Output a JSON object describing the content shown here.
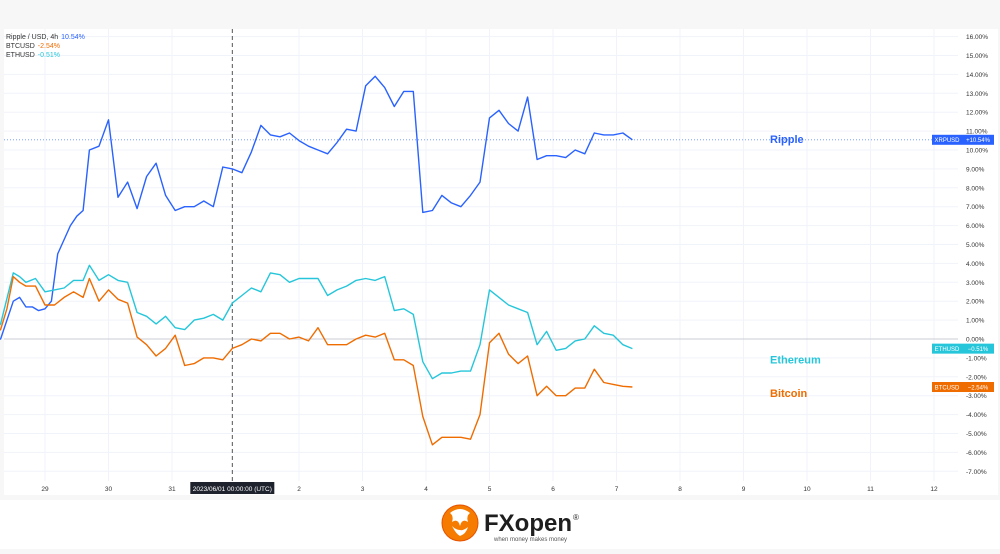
{
  "chart_data": {
    "type": "line",
    "legend": [
      {
        "symbol": "Ripple / USD, 4h",
        "value": "10.54%",
        "color": "#2962ff"
      },
      {
        "symbol": "BTCUSD",
        "value": "-2.54%",
        "color": "#ef6c00"
      },
      {
        "symbol": "ETHUSD",
        "value": "-0.51%",
        "color": "#26c6da"
      }
    ],
    "x_ticks": [
      "29",
      "30",
      "31",
      "2023/06/01   00:00:00 (UTC)",
      "2",
      "3",
      "4",
      "5",
      "6",
      "7",
      "8",
      "9",
      "10",
      "11",
      "12"
    ],
    "y_ticks": [
      "16.00%",
      "15.00%",
      "14.00%",
      "13.00%",
      "12.00%",
      "11.00%",
      "10.00%",
      "9.00%",
      "8.00%",
      "7.00%",
      "6.00%",
      "5.00%",
      "4.00%",
      "3.00%",
      "2.00%",
      "1.00%",
      "0.00%",
      "-1.00%",
      "-2.00%",
      "-3.00%",
      "-4.00%",
      "-5.00%",
      "-6.00%",
      "-7.00%"
    ],
    "ylim": [
      -7.8,
      16.3
    ],
    "series": [
      {
        "name": "Ripple",
        "label": "Ripple",
        "tag": "XRPUSD",
        "tag_value": "+10.54%",
        "color": "#2962ff",
        "points": [
          [
            28.1,
            0
          ],
          [
            28.3,
            0
          ],
          [
            28.5,
            2
          ],
          [
            28.6,
            2.2
          ],
          [
            28.7,
            1.7
          ],
          [
            28.8,
            1.7
          ],
          [
            28.9,
            1.5
          ],
          [
            29.0,
            1.6
          ],
          [
            29.1,
            2
          ],
          [
            29.2,
            4.5
          ],
          [
            29.4,
            6
          ],
          [
            29.5,
            6.5
          ],
          [
            29.6,
            6.8
          ],
          [
            29.7,
            10
          ],
          [
            29.85,
            10.2
          ],
          [
            30.0,
            11.6
          ],
          [
            30.15,
            7.5
          ],
          [
            30.3,
            8.3
          ],
          [
            30.45,
            6.9
          ],
          [
            30.6,
            8.6
          ],
          [
            30.75,
            9.3
          ],
          [
            30.9,
            7.6
          ],
          [
            31.05,
            6.8
          ],
          [
            31.2,
            7
          ],
          [
            31.35,
            7
          ],
          [
            31.5,
            7.3
          ],
          [
            31.65,
            7
          ],
          [
            31.8,
            9.1
          ],
          [
            31.95,
            9
          ],
          [
            32.1,
            8.8
          ],
          [
            32.25,
            9.9
          ],
          [
            32.4,
            11.3
          ],
          [
            32.55,
            10.8
          ],
          [
            32.7,
            10.7
          ],
          [
            32.85,
            10.9
          ],
          [
            33.0,
            10.5
          ],
          [
            33.15,
            10.2
          ],
          [
            33.3,
            10
          ],
          [
            33.45,
            9.8
          ],
          [
            33.6,
            10.4
          ],
          [
            33.75,
            11.1
          ],
          [
            33.9,
            11
          ],
          [
            34.05,
            13.4
          ],
          [
            34.2,
            13.9
          ],
          [
            34.35,
            13.3
          ],
          [
            34.5,
            12.3
          ],
          [
            34.65,
            13.1
          ],
          [
            34.8,
            13.1
          ],
          [
            34.95,
            6.7
          ],
          [
            35.1,
            6.8
          ],
          [
            35.25,
            7.6
          ],
          [
            35.4,
            7.2
          ],
          [
            35.55,
            7
          ],
          [
            35.7,
            7.6
          ],
          [
            35.85,
            8.3
          ],
          [
            36.0,
            11.7
          ],
          [
            36.15,
            12.1
          ],
          [
            36.3,
            11.4
          ],
          [
            36.45,
            11
          ],
          [
            36.6,
            12.8
          ],
          [
            36.75,
            9.5
          ],
          [
            36.9,
            9.7
          ],
          [
            37.05,
            9.7
          ],
          [
            37.2,
            9.6
          ],
          [
            37.35,
            10
          ],
          [
            37.5,
            9.8
          ],
          [
            37.65,
            10.9
          ],
          [
            37.8,
            10.8
          ],
          [
            37.95,
            10.8
          ],
          [
            38.1,
            10.9
          ],
          [
            38.25,
            10.54
          ]
        ]
      },
      {
        "name": "Ethereum",
        "label": "Ethereum",
        "tag": "ETHUSD",
        "tag_value": "−0.51%",
        "color": "#26c6da",
        "points": [
          [
            28.1,
            0
          ],
          [
            28.3,
            0.8
          ],
          [
            28.5,
            3.5
          ],
          [
            28.6,
            3.3
          ],
          [
            28.7,
            3
          ],
          [
            28.85,
            3.2
          ],
          [
            29.0,
            2.5
          ],
          [
            29.15,
            2.6
          ],
          [
            29.3,
            2.7
          ],
          [
            29.45,
            3.1
          ],
          [
            29.6,
            3.1
          ],
          [
            29.7,
            3.9
          ],
          [
            29.85,
            3.1
          ],
          [
            30.0,
            3.4
          ],
          [
            30.15,
            3.1
          ],
          [
            30.3,
            3
          ],
          [
            30.45,
            1.4
          ],
          [
            30.6,
            1.2
          ],
          [
            30.75,
            0.8
          ],
          [
            30.9,
            1.2
          ],
          [
            31.05,
            0.6
          ],
          [
            31.2,
            0.5
          ],
          [
            31.35,
            1
          ],
          [
            31.5,
            1.1
          ],
          [
            31.65,
            1.3
          ],
          [
            31.8,
            1
          ],
          [
            31.95,
            1.9
          ],
          [
            32.1,
            2.3
          ],
          [
            32.25,
            2.7
          ],
          [
            32.4,
            2.5
          ],
          [
            32.55,
            3.5
          ],
          [
            32.7,
            3.4
          ],
          [
            32.85,
            3
          ],
          [
            33.0,
            3.2
          ],
          [
            33.15,
            3.2
          ],
          [
            33.3,
            3.2
          ],
          [
            33.45,
            2.3
          ],
          [
            33.6,
            2.6
          ],
          [
            33.75,
            2.8
          ],
          [
            33.9,
            3.1
          ],
          [
            34.05,
            3.2
          ],
          [
            34.2,
            3.1
          ],
          [
            34.35,
            3.3
          ],
          [
            34.5,
            1.5
          ],
          [
            34.65,
            1.6
          ],
          [
            34.8,
            1.3
          ],
          [
            34.95,
            -1.2
          ],
          [
            35.1,
            -2.1
          ],
          [
            35.25,
            -1.8
          ],
          [
            35.4,
            -1.8
          ],
          [
            35.55,
            -1.7
          ],
          [
            35.7,
            -1.7
          ],
          [
            35.85,
            -0.3
          ],
          [
            36.0,
            2.6
          ],
          [
            36.15,
            2.2
          ],
          [
            36.3,
            1.8
          ],
          [
            36.45,
            1.6
          ],
          [
            36.6,
            1.4
          ],
          [
            36.75,
            -0.3
          ],
          [
            36.9,
            0.4
          ],
          [
            37.05,
            -0.6
          ],
          [
            37.2,
            -0.5
          ],
          [
            37.35,
            -0.1
          ],
          [
            37.5,
            0
          ],
          [
            37.65,
            0.7
          ],
          [
            37.8,
            0.3
          ],
          [
            37.95,
            0.2
          ],
          [
            38.1,
            -0.3
          ],
          [
            38.25,
            -0.51
          ]
        ]
      },
      {
        "name": "Bitcoin",
        "label": "Bitcoin",
        "tag": "BTCUSD",
        "tag_value": "−2.54%",
        "color": "#ef6c00",
        "points": [
          [
            28.1,
            0
          ],
          [
            28.3,
            0.5
          ],
          [
            28.4,
            1.6
          ],
          [
            28.5,
            3.3
          ],
          [
            28.6,
            3
          ],
          [
            28.7,
            2.8
          ],
          [
            28.85,
            2.8
          ],
          [
            29.0,
            1.8
          ],
          [
            29.15,
            1.8
          ],
          [
            29.3,
            2.2
          ],
          [
            29.45,
            2.5
          ],
          [
            29.6,
            2.2
          ],
          [
            29.7,
            3.2
          ],
          [
            29.85,
            2
          ],
          [
            30.0,
            2.6
          ],
          [
            30.15,
            2.1
          ],
          [
            30.3,
            1.9
          ],
          [
            30.45,
            0.1
          ],
          [
            30.6,
            -0.3
          ],
          [
            30.75,
            -0.9
          ],
          [
            30.9,
            -0.5
          ],
          [
            31.05,
            0.2
          ],
          [
            31.2,
            -1.4
          ],
          [
            31.35,
            -1.3
          ],
          [
            31.5,
            -1
          ],
          [
            31.65,
            -1
          ],
          [
            31.8,
            -1.1
          ],
          [
            31.95,
            -0.5
          ],
          [
            32.1,
            -0.3
          ],
          [
            32.25,
            0
          ],
          [
            32.4,
            -0.1
          ],
          [
            32.55,
            0.3
          ],
          [
            32.7,
            0.3
          ],
          [
            32.85,
            0
          ],
          [
            33.0,
            0.1
          ],
          [
            33.15,
            -0.1
          ],
          [
            33.3,
            0.6
          ],
          [
            33.45,
            -0.3
          ],
          [
            33.6,
            -0.3
          ],
          [
            33.75,
            -0.3
          ],
          [
            33.9,
            0
          ],
          [
            34.05,
            0.2
          ],
          [
            34.2,
            0.1
          ],
          [
            34.35,
            0.3
          ],
          [
            34.5,
            -1.1
          ],
          [
            34.65,
            -1.1
          ],
          [
            34.8,
            -1.4
          ],
          [
            34.95,
            -4.1
          ],
          [
            35.1,
            -5.6
          ],
          [
            35.25,
            -5.2
          ],
          [
            35.4,
            -5.2
          ],
          [
            35.55,
            -5.2
          ],
          [
            35.7,
            -5.3
          ],
          [
            35.85,
            -4
          ],
          [
            36.0,
            -0.2
          ],
          [
            36.15,
            0.3
          ],
          [
            36.3,
            -0.8
          ],
          [
            36.45,
            -1.3
          ],
          [
            36.6,
            -0.9
          ],
          [
            36.75,
            -3
          ],
          [
            36.9,
            -2.5
          ],
          [
            37.05,
            -3
          ],
          [
            37.2,
            -3
          ],
          [
            37.35,
            -2.6
          ],
          [
            37.5,
            -2.6
          ],
          [
            37.65,
            -1.6
          ],
          [
            37.8,
            -2.3
          ],
          [
            37.95,
            -2.4
          ],
          [
            38.1,
            -2.5
          ],
          [
            38.25,
            -2.54
          ]
        ]
      }
    ]
  },
  "footer": {
    "brand": "FXopen",
    "registered": "®",
    "tagline": "when money makes money"
  }
}
